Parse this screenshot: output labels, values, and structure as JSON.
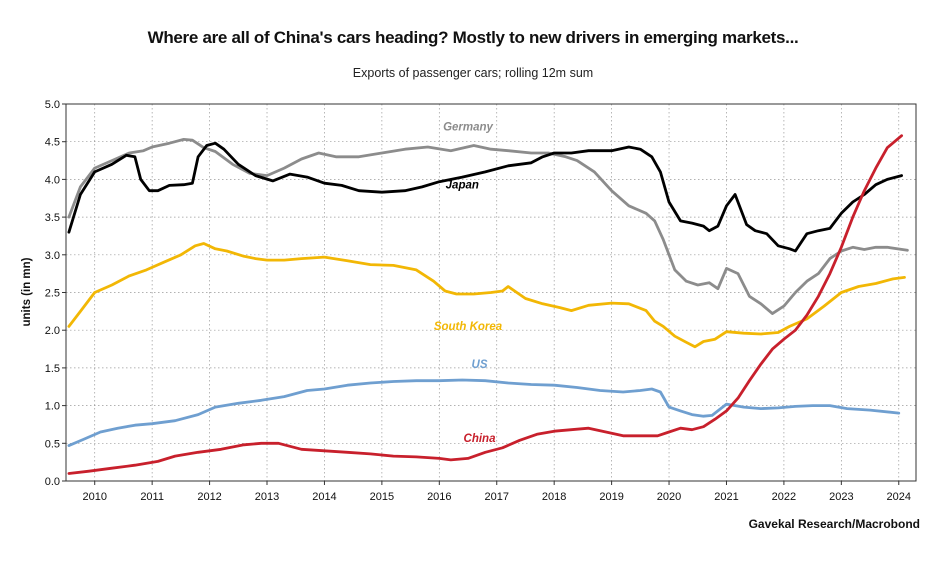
{
  "title": "Where are all of China's cars heading? Mostly to new drivers in emerging markets...",
  "subtitle": "Exports of passenger cars; rolling 12m sum",
  "source": "Gavekal Research/Macrobond",
  "chart_data": {
    "type": "line",
    "ylabel": "units (in mn)",
    "ylim": [
      0.0,
      5.0
    ],
    "yticks": [
      "0.0",
      "0.5",
      "1.0",
      "1.5",
      "2.0",
      "2.5",
      "3.0",
      "3.5",
      "4.0",
      "4.5",
      "5.0"
    ],
    "xlim": [
      2009.5,
      2024.3
    ],
    "xticks": [
      2010,
      2011,
      2012,
      2013,
      2014,
      2015,
      2016,
      2017,
      2018,
      2019,
      2020,
      2021,
      2022,
      2023,
      2024
    ],
    "xtick_labels": [
      "2010",
      "2011",
      "2012",
      "2013",
      "2014",
      "2015",
      "2016",
      "2017",
      "2018",
      "2019",
      "2020",
      "2021",
      "2022",
      "2023",
      "2024"
    ],
    "grid": "dotted",
    "series": [
      {
        "name": "Germany",
        "color": "#8c8c8c",
        "x": [
          2009.55,
          2009.75,
          2010.0,
          2010.3,
          2010.6,
          2010.85,
          2011.0,
          2011.3,
          2011.55,
          2011.7,
          2011.9,
          2012.1,
          2012.4,
          2012.7,
          2013.0,
          2013.3,
          2013.6,
          2013.9,
          2014.2,
          2014.6,
          2015.0,
          2015.4,
          2015.8,
          2016.2,
          2016.6,
          2016.9,
          2017.2,
          2017.6,
          2017.9,
          2018.2,
          2018.4,
          2018.7,
          2019.0,
          2019.3,
          2019.6,
          2019.75,
          2019.9,
          2020.1,
          2020.3,
          2020.5,
          2020.7,
          2020.85,
          2021.0,
          2021.2,
          2021.4,
          2021.6,
          2021.8,
          2022.0,
          2022.2,
          2022.4,
          2022.6,
          2022.8,
          2023.0,
          2023.2,
          2023.4,
          2023.6,
          2023.8,
          2024.15
        ],
        "values": [
          3.5,
          3.9,
          4.15,
          4.25,
          4.35,
          4.38,
          4.43,
          4.48,
          4.53,
          4.52,
          4.42,
          4.37,
          4.2,
          4.08,
          4.05,
          4.15,
          4.27,
          4.35,
          4.3,
          4.3,
          4.35,
          4.4,
          4.43,
          4.38,
          4.45,
          4.4,
          4.38,
          4.35,
          4.35,
          4.3,
          4.25,
          4.1,
          3.85,
          3.65,
          3.55,
          3.45,
          3.2,
          2.8,
          2.65,
          2.6,
          2.63,
          2.55,
          2.82,
          2.75,
          2.45,
          2.35,
          2.22,
          2.32,
          2.5,
          2.65,
          2.75,
          2.95,
          3.05,
          3.1,
          3.07,
          3.1,
          3.1,
          3.06
        ]
      },
      {
        "name": "Japan",
        "color": "#000000",
        "x": [
          2009.55,
          2009.75,
          2010.0,
          2010.3,
          2010.55,
          2010.7,
          2010.8,
          2010.95,
          2011.1,
          2011.3,
          2011.55,
          2011.7,
          2011.8,
          2011.95,
          2012.1,
          2012.25,
          2012.5,
          2012.8,
          2013.1,
          2013.4,
          2013.7,
          2014.0,
          2014.3,
          2014.6,
          2015.0,
          2015.4,
          2015.7,
          2016.0,
          2016.4,
          2016.8,
          2017.2,
          2017.6,
          2017.8,
          2018.0,
          2018.3,
          2018.6,
          2019.0,
          2019.3,
          2019.5,
          2019.7,
          2019.85,
          2020.0,
          2020.2,
          2020.4,
          2020.6,
          2020.7,
          2020.85,
          2021.0,
          2021.15,
          2021.35,
          2021.5,
          2021.7,
          2021.9,
          2022.1,
          2022.2,
          2022.4,
          2022.6,
          2022.8,
          2023.0,
          2023.2,
          2023.4,
          2023.6,
          2023.8,
          2024.05
        ],
        "values": [
          3.3,
          3.8,
          4.1,
          4.2,
          4.32,
          4.3,
          4.0,
          3.85,
          3.85,
          3.92,
          3.93,
          3.95,
          4.3,
          4.45,
          4.48,
          4.4,
          4.2,
          4.05,
          3.98,
          4.07,
          4.03,
          3.95,
          3.92,
          3.85,
          3.83,
          3.85,
          3.9,
          3.97,
          4.03,
          4.1,
          4.18,
          4.22,
          4.3,
          4.35,
          4.35,
          4.38,
          4.38,
          4.43,
          4.4,
          4.3,
          4.1,
          3.7,
          3.45,
          3.42,
          3.38,
          3.32,
          3.38,
          3.65,
          3.8,
          3.4,
          3.32,
          3.28,
          3.12,
          3.08,
          3.05,
          3.28,
          3.32,
          3.35,
          3.55,
          3.7,
          3.8,
          3.93,
          4.0,
          4.05
        ]
      },
      {
        "name": "South Korea",
        "color": "#f2b705",
        "x": [
          2009.55,
          2009.75,
          2010.0,
          2010.3,
          2010.6,
          2010.9,
          2011.2,
          2011.5,
          2011.75,
          2011.9,
          2012.1,
          2012.3,
          2012.6,
          2012.8,
          2013.0,
          2013.3,
          2013.6,
          2014.0,
          2014.4,
          2014.8,
          2015.2,
          2015.6,
          2015.9,
          2016.1,
          2016.3,
          2016.6,
          2016.9,
          2017.1,
          2017.2,
          2017.35,
          2017.5,
          2017.8,
          2018.1,
          2018.3,
          2018.6,
          2019.0,
          2019.3,
          2019.6,
          2019.75,
          2019.9,
          2020.1,
          2020.3,
          2020.45,
          2020.6,
          2020.8,
          2021.0,
          2021.3,
          2021.6,
          2021.9,
          2022.1,
          2022.4,
          2022.7,
          2023.0,
          2023.3,
          2023.6,
          2023.9,
          2024.1
        ],
        "values": [
          2.05,
          2.25,
          2.5,
          2.6,
          2.72,
          2.8,
          2.9,
          3.0,
          3.12,
          3.15,
          3.08,
          3.05,
          2.98,
          2.95,
          2.93,
          2.93,
          2.95,
          2.97,
          2.92,
          2.87,
          2.86,
          2.8,
          2.65,
          2.52,
          2.48,
          2.48,
          2.5,
          2.52,
          2.58,
          2.5,
          2.42,
          2.35,
          2.3,
          2.26,
          2.33,
          2.36,
          2.35,
          2.26,
          2.12,
          2.05,
          1.92,
          1.84,
          1.78,
          1.85,
          1.88,
          1.98,
          1.96,
          1.95,
          1.97,
          2.05,
          2.15,
          2.32,
          2.5,
          2.58,
          2.62,
          2.68,
          2.7
        ]
      },
      {
        "name": "US",
        "color": "#6f9fd0",
        "x": [
          2009.55,
          2009.8,
          2010.1,
          2010.4,
          2010.7,
          2011.0,
          2011.4,
          2011.8,
          2012.1,
          2012.5,
          2012.9,
          2013.3,
          2013.7,
          2014.0,
          2014.4,
          2014.8,
          2015.2,
          2015.6,
          2016.0,
          2016.4,
          2016.8,
          2017.2,
          2017.6,
          2018.0,
          2018.4,
          2018.8,
          2019.2,
          2019.5,
          2019.7,
          2019.85,
          2020.0,
          2020.2,
          2020.4,
          2020.6,
          2020.75,
          2020.9,
          2021.0,
          2021.3,
          2021.6,
          2021.9,
          2022.2,
          2022.5,
          2022.8,
          2023.1,
          2023.5,
          2024.0
        ],
        "values": [
          0.47,
          0.55,
          0.65,
          0.7,
          0.74,
          0.76,
          0.8,
          0.88,
          0.98,
          1.03,
          1.07,
          1.12,
          1.2,
          1.22,
          1.27,
          1.3,
          1.32,
          1.33,
          1.33,
          1.34,
          1.33,
          1.3,
          1.28,
          1.27,
          1.24,
          1.2,
          1.18,
          1.2,
          1.22,
          1.18,
          0.98,
          0.93,
          0.88,
          0.86,
          0.87,
          0.96,
          1.02,
          0.98,
          0.96,
          0.97,
          0.99,
          1.0,
          1.0,
          0.96,
          0.94,
          0.9
        ]
      },
      {
        "name": "China",
        "color": "#c8202c",
        "x": [
          2009.55,
          2009.9,
          2010.3,
          2010.7,
          2011.1,
          2011.4,
          2011.8,
          2012.2,
          2012.6,
          2012.9,
          2013.2,
          2013.6,
          2014.0,
          2014.4,
          2014.8,
          2015.2,
          2015.6,
          2016.0,
          2016.2,
          2016.5,
          2016.8,
          2017.1,
          2017.4,
          2017.7,
          2018.0,
          2018.3,
          2018.6,
          2018.9,
          2019.2,
          2019.5,
          2019.8,
          2020.0,
          2020.2,
          2020.4,
          2020.6,
          2020.8,
          2021.0,
          2021.2,
          2021.4,
          2021.6,
          2021.8,
          2022.0,
          2022.2,
          2022.4,
          2022.6,
          2022.8,
          2023.0,
          2023.2,
          2023.4,
          2023.6,
          2023.8,
          2024.05
        ],
        "values": [
          0.1,
          0.13,
          0.17,
          0.21,
          0.26,
          0.33,
          0.38,
          0.42,
          0.48,
          0.5,
          0.5,
          0.42,
          0.4,
          0.38,
          0.36,
          0.33,
          0.32,
          0.3,
          0.28,
          0.3,
          0.38,
          0.44,
          0.54,
          0.62,
          0.66,
          0.68,
          0.7,
          0.65,
          0.6,
          0.6,
          0.6,
          0.65,
          0.7,
          0.68,
          0.72,
          0.82,
          0.93,
          1.1,
          1.33,
          1.55,
          1.75,
          1.88,
          2.0,
          2.2,
          2.45,
          2.75,
          3.1,
          3.5,
          3.85,
          4.15,
          4.42,
          4.58
        ]
      }
    ],
    "labels": [
      {
        "text": "Germany",
        "series": "Germany",
        "x": 2016.5,
        "y": 4.65
      },
      {
        "text": "Japan",
        "series": "Japan",
        "x": 2016.4,
        "y": 3.88
      },
      {
        "text": "South Korea",
        "series": "South Korea",
        "x": 2016.5,
        "y": 2.0
      },
      {
        "text": "US",
        "series": "US",
        "x": 2016.7,
        "y": 1.5
      },
      {
        "text": "China",
        "series": "China",
        "x": 2016.7,
        "y": 0.52
      }
    ]
  }
}
